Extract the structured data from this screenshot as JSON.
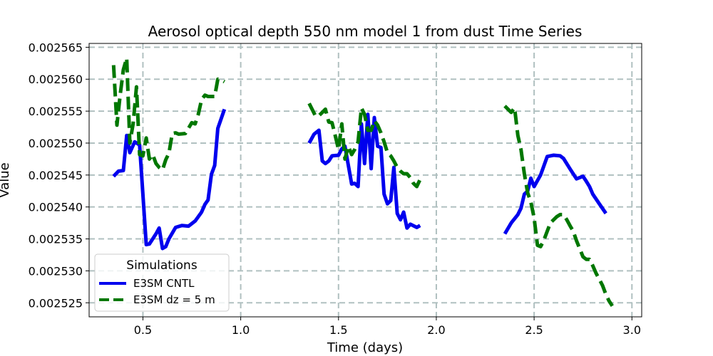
{
  "chart_data": {
    "type": "line",
    "title": "Aerosol optical depth 550 nm model 1 from dust Time Series",
    "xlabel": "Time (days)",
    "ylabel": "Value",
    "xlim": [
      0.225,
      3.05
    ],
    "ylim": [
      0.0025228,
      0.0025656
    ],
    "xticks": [
      0.5,
      1.0,
      1.5,
      2.0,
      2.5,
      3.0
    ],
    "xtick_labels": [
      "0.5",
      "1.0",
      "1.5",
      "2.0",
      "2.5",
      "3.0"
    ],
    "yticks": [
      0.002525,
      0.00253,
      0.002535,
      0.00254,
      0.002545,
      0.00255,
      0.002555,
      0.00256,
      0.002565
    ],
    "ytick_labels": [
      "0.002525",
      "0.002530",
      "0.002535",
      "0.002540",
      "0.002545",
      "0.002550",
      "0.002555",
      "0.002560",
      "0.002565"
    ],
    "grid": true,
    "legend": {
      "title": "Simulations",
      "position": "lower-left"
    },
    "series": [
      {
        "name": "E3SM CNTL",
        "color": "#0000ee",
        "style": "solid",
        "segments": [
          [
            [
              0.35,
              0.0025448
            ],
            [
              0.375,
              0.0025456
            ],
            [
              0.4,
              0.0025457
            ],
            [
              0.417,
              0.0025512
            ],
            [
              0.433,
              0.0025485
            ],
            [
              0.458,
              0.0025502
            ],
            [
              0.483,
              0.0025497
            ],
            [
              0.5,
              0.002542
            ],
            [
              0.517,
              0.0025341
            ],
            [
              0.533,
              0.0025342
            ],
            [
              0.55,
              0.002535
            ],
            [
              0.567,
              0.0025358
            ],
            [
              0.583,
              0.0025367
            ],
            [
              0.6,
              0.0025335
            ],
            [
              0.617,
              0.0025338
            ],
            [
              0.633,
              0.002535
            ],
            [
              0.667,
              0.0025368
            ],
            [
              0.7,
              0.0025371
            ],
            [
              0.733,
              0.002537
            ],
            [
              0.767,
              0.0025378
            ],
            [
              0.8,
              0.0025392
            ],
            [
              0.817,
              0.0025404
            ],
            [
              0.833,
              0.0025411
            ],
            [
              0.85,
              0.0025451
            ],
            [
              0.867,
              0.0025465
            ],
            [
              0.883,
              0.0025523
            ],
            [
              0.917,
              0.0025553
            ]
          ],
          [
            [
              1.35,
              0.00255
            ],
            [
              1.375,
              0.0025514
            ],
            [
              1.4,
              0.002552
            ],
            [
              1.417,
              0.0025472
            ],
            [
              1.433,
              0.0025468
            ],
            [
              1.45,
              0.0025472
            ],
            [
              1.467,
              0.002548
            ],
            [
              1.5,
              0.0025481
            ],
            [
              1.517,
              0.0025491
            ],
            [
              1.533,
              0.0025495
            ],
            [
              1.567,
              0.0025436
            ],
            [
              1.583,
              0.0025437
            ],
            [
              1.6,
              0.0025432
            ],
            [
              1.617,
              0.002553
            ],
            [
              1.633,
              0.0025468
            ],
            [
              1.65,
              0.0025545
            ],
            [
              1.667,
              0.002546
            ],
            [
              1.683,
              0.002554
            ],
            [
              1.7,
              0.0025495
            ],
            [
              1.717,
              0.0025493
            ],
            [
              1.733,
              0.002542
            ],
            [
              1.75,
              0.0025405
            ],
            [
              1.767,
              0.002541
            ],
            [
              1.783,
              0.0025462
            ],
            [
              1.8,
              0.002539
            ],
            [
              1.817,
              0.002538
            ],
            [
              1.833,
              0.0025392
            ],
            [
              1.85,
              0.0025367
            ],
            [
              1.867,
              0.0025373
            ],
            [
              1.9,
              0.0025368
            ],
            [
              1.917,
              0.0025371
            ]
          ],
          [
            [
              2.35,
              0.0025358
            ],
            [
              2.383,
              0.0025375
            ],
            [
              2.417,
              0.0025388
            ],
            [
              2.433,
              0.0025398
            ],
            [
              2.45,
              0.002542
            ],
            [
              2.467,
              0.0025425
            ],
            [
              2.483,
              0.0025445
            ],
            [
              2.5,
              0.0025432
            ],
            [
              2.533,
              0.002545
            ],
            [
              2.567,
              0.0025479
            ],
            [
              2.6,
              0.0025481
            ],
            [
              2.633,
              0.002548
            ],
            [
              2.65,
              0.0025476
            ],
            [
              2.683,
              0.002546
            ],
            [
              2.717,
              0.0025444
            ],
            [
              2.75,
              0.0025448
            ],
            [
              2.767,
              0.002544
            ],
            [
              2.783,
              0.0025432
            ],
            [
              2.8,
              0.002542
            ],
            [
              2.833,
              0.0025405
            ],
            [
              2.867,
              0.002539
            ]
          ]
        ]
      },
      {
        "name": "E3SM dz = 5 m",
        "color": "#007700",
        "style": "dashed",
        "segments": [
          [
            [
              0.35,
              0.0025622
            ],
            [
              0.367,
              0.0025528
            ],
            [
              0.383,
              0.0025573
            ],
            [
              0.4,
              0.0025615
            ],
            [
              0.417,
              0.0025633
            ],
            [
              0.433,
              0.00255
            ],
            [
              0.45,
              0.002553
            ],
            [
              0.467,
              0.0025588
            ],
            [
              0.483,
              0.0025482
            ],
            [
              0.5,
              0.002548
            ],
            [
              0.517,
              0.0025508
            ],
            [
              0.533,
              0.0025475
            ],
            [
              0.55,
              0.0025482
            ],
            [
              0.567,
              0.0025468
            ],
            [
              0.583,
              0.0025462
            ],
            [
              0.6,
              0.0025458
            ],
            [
              0.617,
              0.0025474
            ],
            [
              0.633,
              0.0025484
            ],
            [
              0.65,
              0.0025515
            ],
            [
              0.667,
              0.0025516
            ],
            [
              0.683,
              0.0025514
            ],
            [
              0.717,
              0.0025515
            ],
            [
              0.75,
              0.0025532
            ],
            [
              0.767,
              0.002553
            ],
            [
              0.783,
              0.0025545
            ],
            [
              0.8,
              0.0025568
            ],
            [
              0.817,
              0.0025575
            ],
            [
              0.833,
              0.0025573
            ],
            [
              0.867,
              0.0025573
            ],
            [
              0.883,
              0.00256
            ],
            [
              0.9,
              0.0025599
            ],
            [
              0.917,
              0.0025596
            ]
          ],
          [
            [
              1.35,
              0.0025562
            ],
            [
              1.383,
              0.0025542
            ],
            [
              1.4,
              0.0025543
            ],
            [
              1.417,
              0.0025548
            ],
            [
              1.433,
              0.0025553
            ],
            [
              1.45,
              0.0025533
            ],
            [
              1.467,
              0.0025532
            ],
            [
              1.483,
              0.0025512
            ],
            [
              1.5,
              0.002549
            ],
            [
              1.517,
              0.002553
            ],
            [
              1.533,
              0.0025475
            ],
            [
              1.55,
              0.0025495
            ],
            [
              1.567,
              0.0025482
            ],
            [
              1.583,
              0.002549
            ],
            [
              1.6,
              0.0025502
            ],
            [
              1.617,
              0.0025555
            ],
            [
              1.633,
              0.0025545
            ],
            [
              1.65,
              0.002552
            ],
            [
              1.667,
              0.002552
            ],
            [
              1.683,
              0.0025535
            ],
            [
              1.7,
              0.0025528
            ],
            [
              1.717,
              0.0025516
            ],
            [
              1.733,
              0.0025502
            ],
            [
              1.75,
              0.0025485
            ],
            [
              1.767,
              0.002548
            ],
            [
              1.783,
              0.0025472
            ],
            [
              1.8,
              0.0025462
            ],
            [
              1.817,
              0.0025456
            ],
            [
              1.833,
              0.0025452
            ],
            [
              1.85,
              0.0025452
            ],
            [
              1.867,
              0.0025446
            ],
            [
              1.883,
              0.0025437
            ],
            [
              1.9,
              0.0025432
            ],
            [
              1.917,
              0.0025443
            ]
          ],
          [
            [
              2.35,
              0.0025558
            ],
            [
              2.383,
              0.0025548
            ],
            [
              2.4,
              0.0025555
            ],
            [
              2.417,
              0.0025512
            ],
            [
              2.433,
              0.002549
            ],
            [
              2.45,
              0.0025452
            ],
            [
              2.467,
              0.0025422
            ],
            [
              2.483,
              0.0025408
            ],
            [
              2.5,
              0.0025383
            ],
            [
              2.517,
              0.002534
            ],
            [
              2.533,
              0.0025338
            ],
            [
              2.55,
              0.0025348
            ],
            [
              2.567,
              0.0025362
            ],
            [
              2.583,
              0.0025375
            ],
            [
              2.6,
              0.002538
            ],
            [
              2.617,
              0.0025385
            ],
            [
              2.633,
              0.0025388
            ],
            [
              2.65,
              0.0025388
            ],
            [
              2.667,
              0.002538
            ],
            [
              2.683,
              0.0025371
            ],
            [
              2.7,
              0.0025362
            ],
            [
              2.717,
              0.0025347
            ],
            [
              2.733,
              0.0025335
            ],
            [
              2.75,
              0.0025322
            ],
            [
              2.767,
              0.0025318
            ],
            [
              2.783,
              0.0025318
            ],
            [
              2.8,
              0.0025308
            ],
            [
              2.817,
              0.0025296
            ],
            [
              2.833,
              0.0025287
            ],
            [
              2.85,
              0.0025277
            ],
            [
              2.867,
              0.0025263
            ],
            [
              2.883,
              0.0025253
            ],
            [
              2.9,
              0.0025245
            ]
          ]
        ]
      }
    ]
  }
}
